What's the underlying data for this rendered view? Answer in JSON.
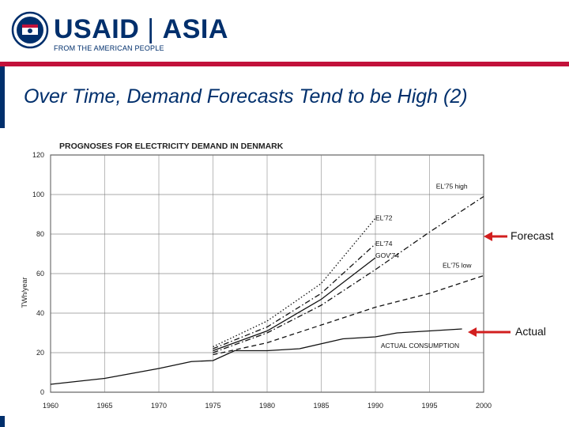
{
  "header": {
    "logo_main": "USAID",
    "logo_region": "ASIA",
    "logo_tagline": "FROM THE AMERICAN PEOPLE",
    "brand_blue": "#002f6c",
    "brand_red": "#c2113a"
  },
  "slide": {
    "title": "Over Time, Demand Forecasts Tend to be High (2)"
  },
  "callouts": {
    "forecast": "Forecast",
    "actual": "Actual",
    "arrow_color": "#d21f1f"
  },
  "chart_data": {
    "type": "line",
    "title": "PROGNOSES FOR ELECTRICITY DEMAND IN DENMARK",
    "xlabel": "",
    "ylabel": "TWh/year",
    "xlim": [
      1960,
      2000
    ],
    "ylim": [
      0,
      120
    ],
    "xticks": [
      1960,
      1965,
      1970,
      1975,
      1980,
      1985,
      1990,
      1995,
      2000
    ],
    "yticks": [
      0,
      20,
      40,
      60,
      80,
      100,
      120
    ],
    "grid": true,
    "series": [
      {
        "name": "ACTUAL CONSUMPTION",
        "style": "solid",
        "x": [
          1960,
          1965,
          1970,
          1973,
          1975,
          1977,
          1980,
          1983,
          1987,
          1990,
          1992,
          1995,
          1998
        ],
        "y": [
          4,
          7,
          12,
          15.5,
          16,
          21,
          21,
          22,
          27,
          28,
          30,
          31,
          32
        ]
      },
      {
        "name": "EL'72",
        "style": "dotted",
        "x": [
          1975,
          1980,
          1985,
          1990
        ],
        "y": [
          23,
          36,
          55,
          88
        ]
      },
      {
        "name": "EL'74",
        "style": "dash-dot",
        "x": [
          1975,
          1980,
          1985,
          1990
        ],
        "y": [
          22,
          33,
          50,
          75
        ]
      },
      {
        "name": "GOV'74",
        "style": "solid",
        "x": [
          1975,
          1980,
          1985,
          1990
        ],
        "y": [
          21,
          31,
          47,
          68
        ]
      },
      {
        "name": "EL'75 high",
        "style": "dash-dot",
        "x": [
          1975,
          1980,
          1985,
          1990,
          1995,
          2000
        ],
        "y": [
          20,
          30,
          44,
          62,
          81,
          99
        ]
      },
      {
        "name": "EL'75 low",
        "style": "dashed",
        "x": [
          1975,
          1980,
          1985,
          1990,
          1995,
          2000
        ],
        "y": [
          19,
          25,
          34,
          43,
          50,
          59
        ]
      }
    ]
  }
}
